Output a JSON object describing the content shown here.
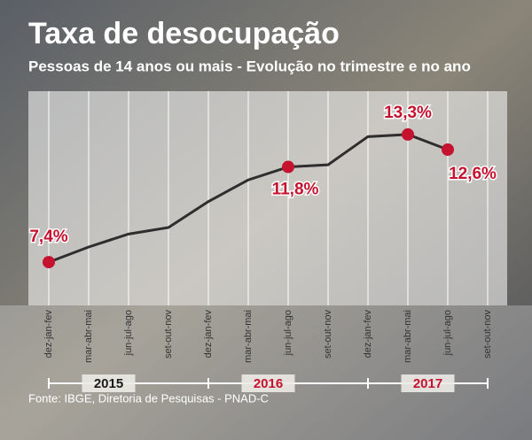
{
  "chart_data": {
    "type": "line",
    "title": "Taxa de desocupação",
    "subtitle": "Pessoas de 14 anos ou mais - Evolução no trimestre e no ano",
    "source": "Fonte: IBGE, Diretoria de Pesquisas - PNAD-C",
    "categories": [
      "dez-jan-fev",
      "mar-abr-mai",
      "jun-jul-ago",
      "set-out-nov",
      "dez-jan-fev",
      "mar-abr-mai",
      "jun-jul-ago",
      "set-out-nov",
      "dez-jan-fev",
      "mar-abr-mai",
      "jun-jul-ago",
      "set-out-nov"
    ],
    "series": [
      {
        "name": "Taxa de desocupação",
        "color": "#2e2e2e",
        "values": [
          7.4,
          8.1,
          8.7,
          9.0,
          10.2,
          11.2,
          11.8,
          11.9,
          13.2,
          13.3,
          12.6,
          null
        ],
        "value_labels": [
          "7,4%",
          null,
          null,
          null,
          null,
          null,
          "11,8%",
          null,
          null,
          "13,3%",
          "12,6%",
          null
        ],
        "marker_color": "#c4122f"
      }
    ],
    "years": [
      {
        "name": "2015",
        "color": "#1a1a1a"
      },
      {
        "name": "2016",
        "color": "#c4122f"
      },
      {
        "name": "2017",
        "color": "#c4122f"
      }
    ],
    "ylim": [
      5.4,
      15.3
    ],
    "grid": true
  }
}
